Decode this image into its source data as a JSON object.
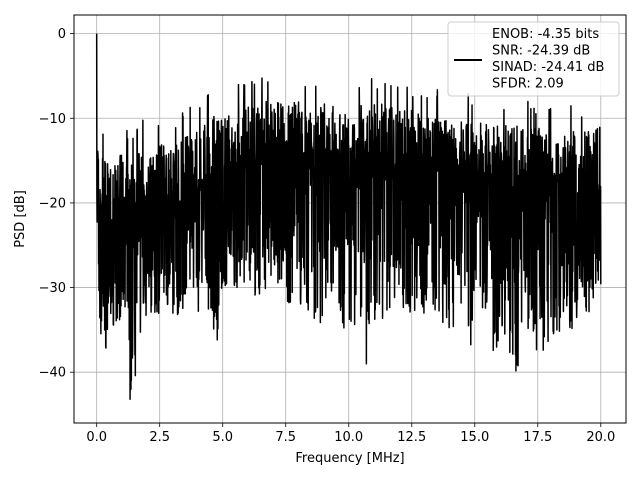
{
  "chart_data": {
    "type": "line",
    "xlabel": "Frequency [MHz]",
    "ylabel": "PSD [dB]",
    "xlim": [
      -0.9,
      21.0
    ],
    "ylim": [
      -46,
      2.2
    ],
    "xticks": [
      0.0,
      2.5,
      5.0,
      7.5,
      10.0,
      12.5,
      15.0,
      17.5,
      20.0
    ],
    "xtick_labels": [
      "0.0",
      "2.5",
      "5.0",
      "7.5",
      "10.0",
      "12.5",
      "15.0",
      "17.5",
      "20.0"
    ],
    "yticks": [
      0,
      -10,
      -20,
      -30,
      -40
    ],
    "ytick_labels": [
      "0",
      "−10",
      "−20",
      "−30",
      "−40"
    ],
    "grid": true,
    "legend_position": "top-right",
    "series": [
      {
        "name": "ENOB: -4.35 bits\nSNR: -24.39 dB\nSINAD: -24.41 dB\nSFDR: 2.09",
        "color": "#000000",
        "x": [
          0.0,
          0.05,
          0.1,
          0.15,
          0.2,
          0.3,
          0.4,
          0.5,
          0.6,
          0.8,
          1.0,
          1.2,
          1.33,
          1.5,
          1.8,
          2.0,
          2.5,
          3.0,
          3.5,
          4.0,
          4.5,
          4.75,
          5.0,
          5.5,
          6.0,
          6.5,
          7.0,
          7.5,
          8.0,
          8.5,
          8.9,
          9.0,
          9.5,
          9.9,
          10.0,
          10.5,
          10.55,
          10.8,
          11.0,
          11.5,
          12.0,
          12.5,
          13.0,
          13.5,
          14.0,
          14.5,
          14.85,
          15.0,
          15.5,
          15.8,
          16.0,
          16.5,
          16.8,
          17.0,
          17.5,
          18.0,
          18.5,
          19.0,
          19.5,
          20.0
        ],
        "y_max": [
          0.0,
          -8.0,
          -11.0,
          -12.0,
          -12.0,
          -11.0,
          -12.0,
          -12.0,
          -13.0,
          -12.0,
          -11.0,
          -11.0,
          -11.0,
          -12.0,
          -10.0,
          -11.0,
          -10.0,
          -10.0,
          -9.0,
          -8.0,
          -7.0,
          -6.5,
          -6.0,
          -5.5,
          -5.0,
          -5.0,
          -4.5,
          -5.0,
          -5.0,
          -5.5,
          -5.5,
          -5.0,
          -5.0,
          -6.0,
          -5.5,
          -5.0,
          -5.0,
          -5.5,
          -5.0,
          -5.5,
          -6.0,
          -6.0,
          -6.5,
          -6.5,
          -7.0,
          -7.0,
          -7.0,
          -7.5,
          -7.5,
          -7.5,
          -7.5,
          -7.5,
          -8.0,
          -8.0,
          -8.0,
          -8.0,
          -8.5,
          -8.5,
          -8.5,
          -8.0
        ],
        "y_min": [
          -20.0,
          -28.0,
          -32.0,
          -36.0,
          -38.0,
          -35.0,
          -40.5,
          -33.0,
          -35.0,
          -34.0,
          -35.0,
          -36.5,
          -43.8,
          -41.5,
          -36.0,
          -34.0,
          -33.0,
          -33.0,
          -34.0,
          -33.0,
          -33.0,
          -37.5,
          -31.0,
          -30.0,
          -30.0,
          -32.0,
          -30.0,
          -32.0,
          -32.0,
          -33.0,
          -35.0,
          -33.0,
          -30.0,
          -37.0,
          -34.0,
          -35.0,
          -42.8,
          -37.0,
          -36.0,
          -33.0,
          -32.0,
          -34.0,
          -33.0,
          -34.0,
          -35.0,
          -34.0,
          -38.0,
          -35.0,
          -33.0,
          -41.0,
          -34.0,
          -39.0,
          -41.2,
          -34.0,
          -38.0,
          -37.0,
          -35.0,
          -35.0,
          -33.0,
          -31.0
        ]
      }
    ]
  }
}
